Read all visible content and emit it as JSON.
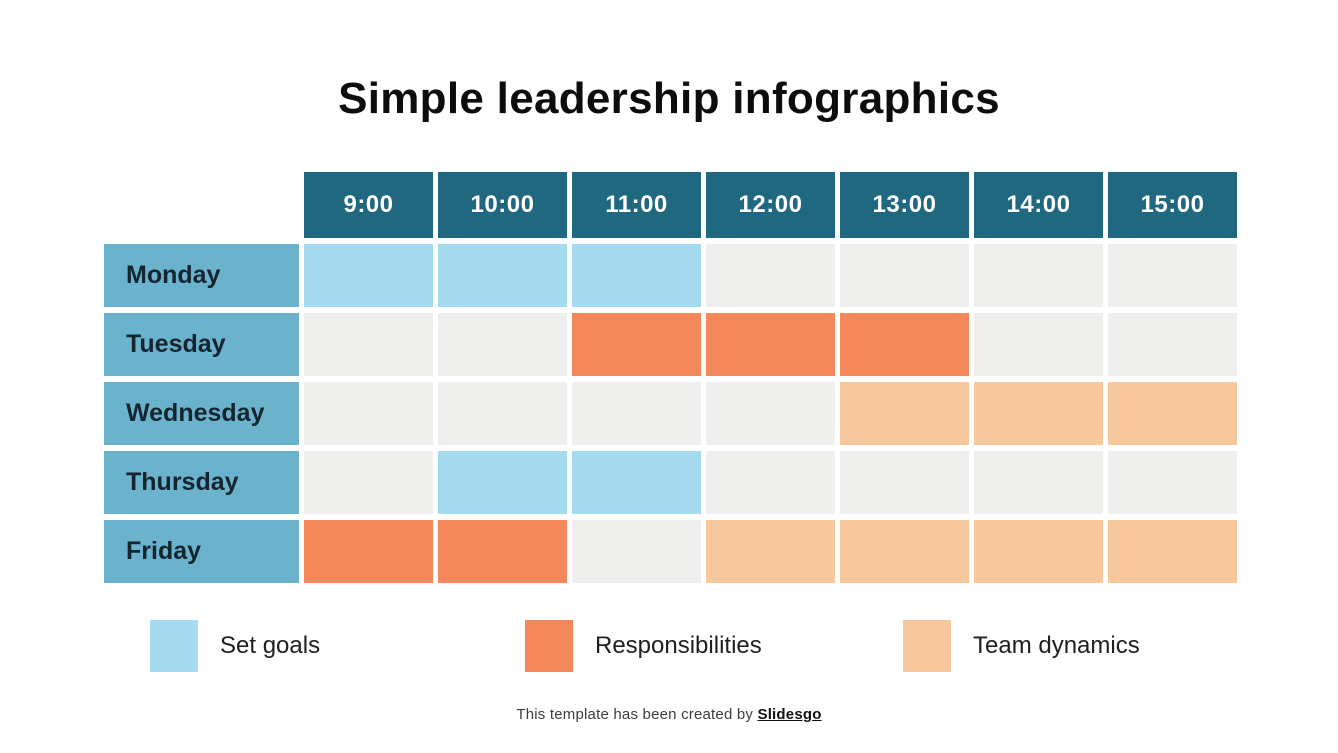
{
  "slide": {
    "title": "Simple leadership infographics",
    "footer_text": "This template has been created by ",
    "footer_brand": "Slidesgo"
  },
  "colors": {
    "header_bg": "#20687F",
    "header_text": "#FFFFFF",
    "day_bg": "#6BB2CC",
    "day_text": "#14252F",
    "empty_cell": "#EFEFED",
    "set_goals": "#A6DAEE",
    "responsibilities": "#F5885A",
    "team_dynamics": "#F7C79D",
    "title_text": "#0D0D0D"
  },
  "chart_data": {
    "type": "table",
    "title": "Simple leadership infographics",
    "columns": [
      "9:00",
      "10:00",
      "11:00",
      "12:00",
      "13:00",
      "14:00",
      "15:00"
    ],
    "rows": [
      "Monday",
      "Tuesday",
      "Wednesday",
      "Thursday",
      "Friday"
    ],
    "cells": [
      [
        "set_goals",
        "set_goals",
        "set_goals",
        "",
        "",
        "",
        ""
      ],
      [
        "",
        "",
        "responsibilities",
        "responsibilities",
        "responsibilities",
        "",
        ""
      ],
      [
        "",
        "",
        "",
        "",
        "team_dynamics",
        "team_dynamics",
        "team_dynamics"
      ],
      [
        "",
        "set_goals",
        "set_goals",
        "",
        "",
        "",
        ""
      ],
      [
        "responsibilities",
        "responsibilities",
        "",
        "team_dynamics",
        "team_dynamics",
        "team_dynamics",
        "team_dynamics"
      ]
    ],
    "legend": [
      {
        "label": "Set goals",
        "key": "set_goals",
        "color": "#A6DAEE"
      },
      {
        "label": "Responsibilities",
        "key": "responsibilities",
        "color": "#F5885A"
      },
      {
        "label": "Team dynamics",
        "key": "team_dynamics",
        "color": "#F7C79D"
      }
    ],
    "legend_position": "bottom"
  }
}
